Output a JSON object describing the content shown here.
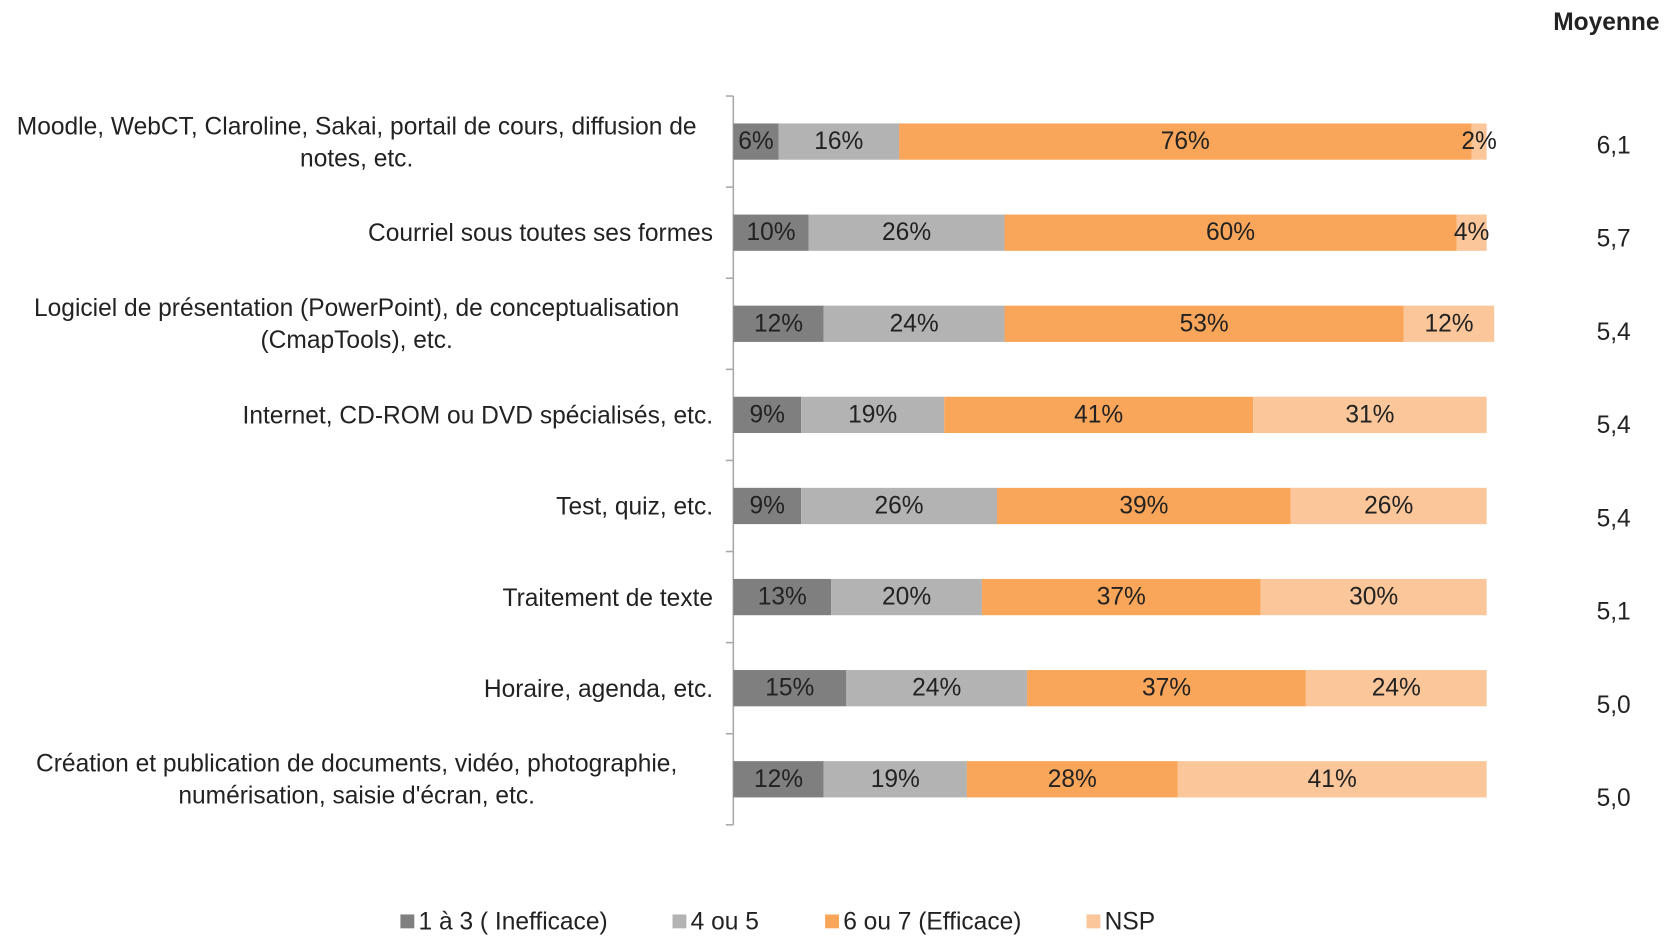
{
  "chart_data": {
    "type": "stacked-bar-horizontal",
    "categories": [
      "Moodle, WebCT, Claroline, Sakai, portail de cours, diffusion de notes, etc.",
      "Courriel sous toutes ses formes",
      "Logiciel de présentation (PowerPoint), de conceptualisation (CmapTools), etc.",
      "Internet, CD-ROM ou DVD spécialisés, etc.",
      "Test, quiz, etc.",
      "Traitement de texte",
      "Horaire, agenda, etc.",
      "Création et publication de documents, vidéo, photographie, numérisation, saisie d'écran, etc."
    ],
    "series": [
      {
        "name": "1 à 3 ( Inefficace)",
        "color": "#7f7f7f",
        "values": [
          6,
          10,
          12,
          9,
          9,
          13,
          15,
          12
        ],
        "value_labels": [
          "6%",
          "10%",
          "12%",
          "9%",
          "9%",
          "13%",
          "15%",
          "12%"
        ]
      },
      {
        "name": "4 ou 5",
        "color": "#b3b3b3",
        "values": [
          16,
          26,
          24,
          19,
          26,
          20,
          24,
          19
        ],
        "value_labels": [
          "16%",
          "26%",
          "24%",
          "19%",
          "26%",
          "20%",
          "24%",
          "19%"
        ]
      },
      {
        "name": "6 ou 7 (Efficace)",
        "color": "#f9a65a",
        "values": [
          76,
          60,
          53,
          41,
          39,
          37,
          37,
          28
        ],
        "value_labels": [
          "76%",
          "60%",
          "53%",
          "41%",
          "39%",
          "37%",
          "37%",
          "28%"
        ]
      },
      {
        "name": "NSP",
        "color": "#fac69a",
        "values": [
          2,
          4,
          12,
          31,
          26,
          30,
          24,
          41
        ],
        "value_labels": [
          "2%",
          "4%",
          "12%",
          "31%",
          "26%",
          "30%",
          "24%",
          "41%"
        ]
      }
    ],
    "xlim": [
      0,
      100
    ],
    "averages": {
      "title": "Moyenne",
      "values": [
        6.1,
        5.7,
        5.4,
        5.4,
        5.4,
        5.1,
        5.0,
        5.0
      ],
      "value_labels": [
        "6,1",
        "5,7",
        "5,4",
        "5,4",
        "5,4",
        "5,1",
        "5,0",
        "5,0"
      ]
    },
    "legend": "bottom"
  }
}
